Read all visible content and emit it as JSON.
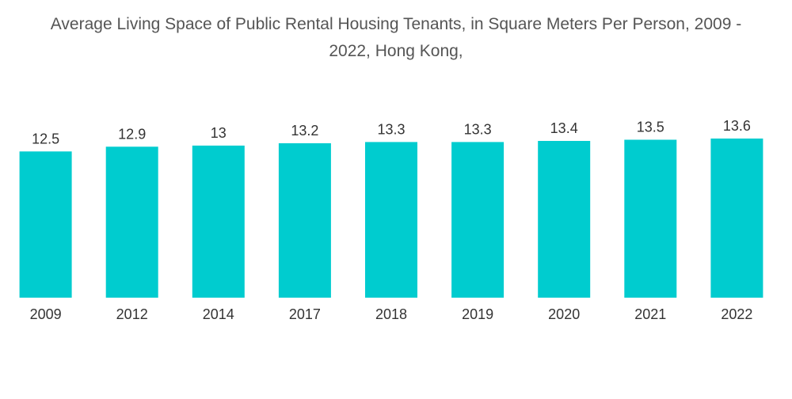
{
  "chart_data": {
    "type": "bar",
    "title_line1": "Average Living Space of Public Rental Housing Tenants, in Square Meters Per Person, 2009 -",
    "title_line2": "2022, Hong Kong,",
    "categories": [
      "2009",
      "2012",
      "2014",
      "2017",
      "2018",
      "2019",
      "2020",
      "2021",
      "2022"
    ],
    "values": [
      12.5,
      12.9,
      13,
      13.2,
      13.3,
      13.3,
      13.4,
      13.5,
      13.6
    ],
    "value_labels": [
      "12.5",
      "12.9",
      "13",
      "13.2",
      "13.3",
      "13.3",
      "13.4",
      "13.5",
      "13.6"
    ],
    "xlabel": "",
    "ylabel": "",
    "ylim": [
      0,
      13.6
    ],
    "grid": false,
    "legend": "none",
    "bar_color": "#00CCCF"
  }
}
